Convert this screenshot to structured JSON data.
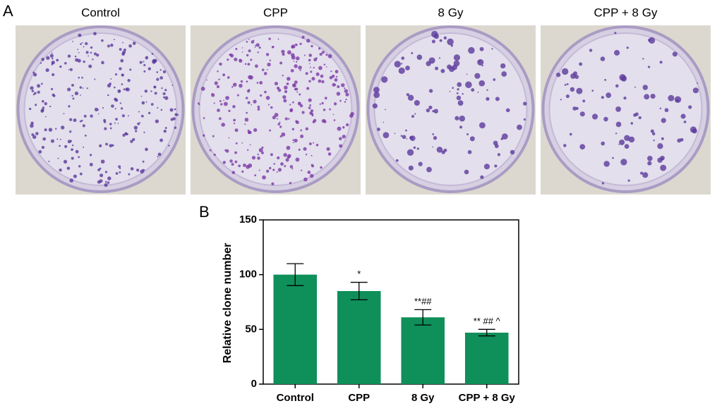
{
  "panel_a": {
    "label": "A",
    "titles": [
      "Control",
      "CPP",
      "8 Gy",
      "CPP + 8 Gy"
    ]
  },
  "chart_data": {
    "type": "bar",
    "panel_label": "B",
    "ylabel": "Relative clone number",
    "categories": [
      "Control",
      "CPP",
      "8 Gy",
      "CPP + 8 Gy"
    ],
    "values": [
      100,
      85,
      61,
      47
    ],
    "errors": [
      10,
      8,
      7,
      3
    ],
    "significance": [
      null,
      "*",
      "**##",
      "** ## ^"
    ],
    "color": "#0f8f5a",
    "ylim": [
      0,
      150
    ],
    "yticks": [
      0,
      50,
      100,
      150
    ]
  }
}
